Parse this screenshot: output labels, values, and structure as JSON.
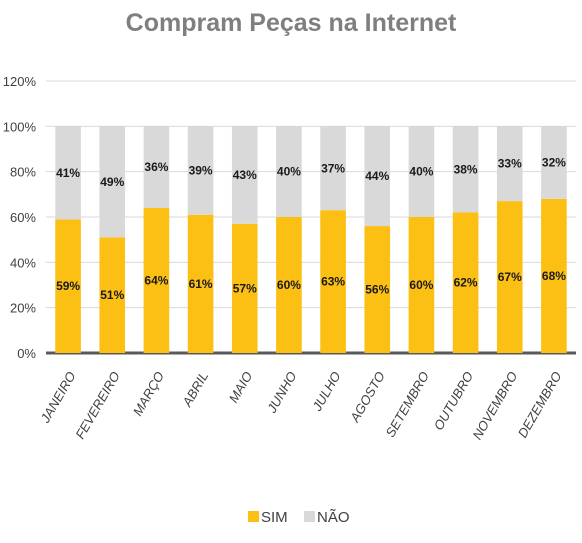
{
  "chart_data": {
    "type": "bar",
    "stacked": true,
    "title": "Compram Peças na Internet",
    "categories": [
      "JANEIRO",
      "FEVEREIRO",
      "MARÇO",
      "ABRIL",
      "MAIO",
      "JUNHO",
      "JULHO",
      "AGOSTO",
      "SETEMBRO",
      "OUTUBRO",
      "NOVEMBRO",
      "DEZEMBRO"
    ],
    "series": [
      {
        "name": "SIM",
        "color": "#fcbf14",
        "values": [
          59,
          51,
          64,
          61,
          57,
          60,
          63,
          56,
          60,
          62,
          67,
          68
        ]
      },
      {
        "name": "NÃO",
        "color": "#d9d9d9",
        "values": [
          41,
          49,
          36,
          39,
          43,
          40,
          37,
          44,
          40,
          38,
          33,
          32
        ]
      }
    ],
    "ylim": [
      0,
      120
    ],
    "yticks": [
      0,
      20,
      40,
      60,
      80,
      100,
      120
    ],
    "y_suffix": "%",
    "grid": true,
    "legend": "bottom-center"
  }
}
